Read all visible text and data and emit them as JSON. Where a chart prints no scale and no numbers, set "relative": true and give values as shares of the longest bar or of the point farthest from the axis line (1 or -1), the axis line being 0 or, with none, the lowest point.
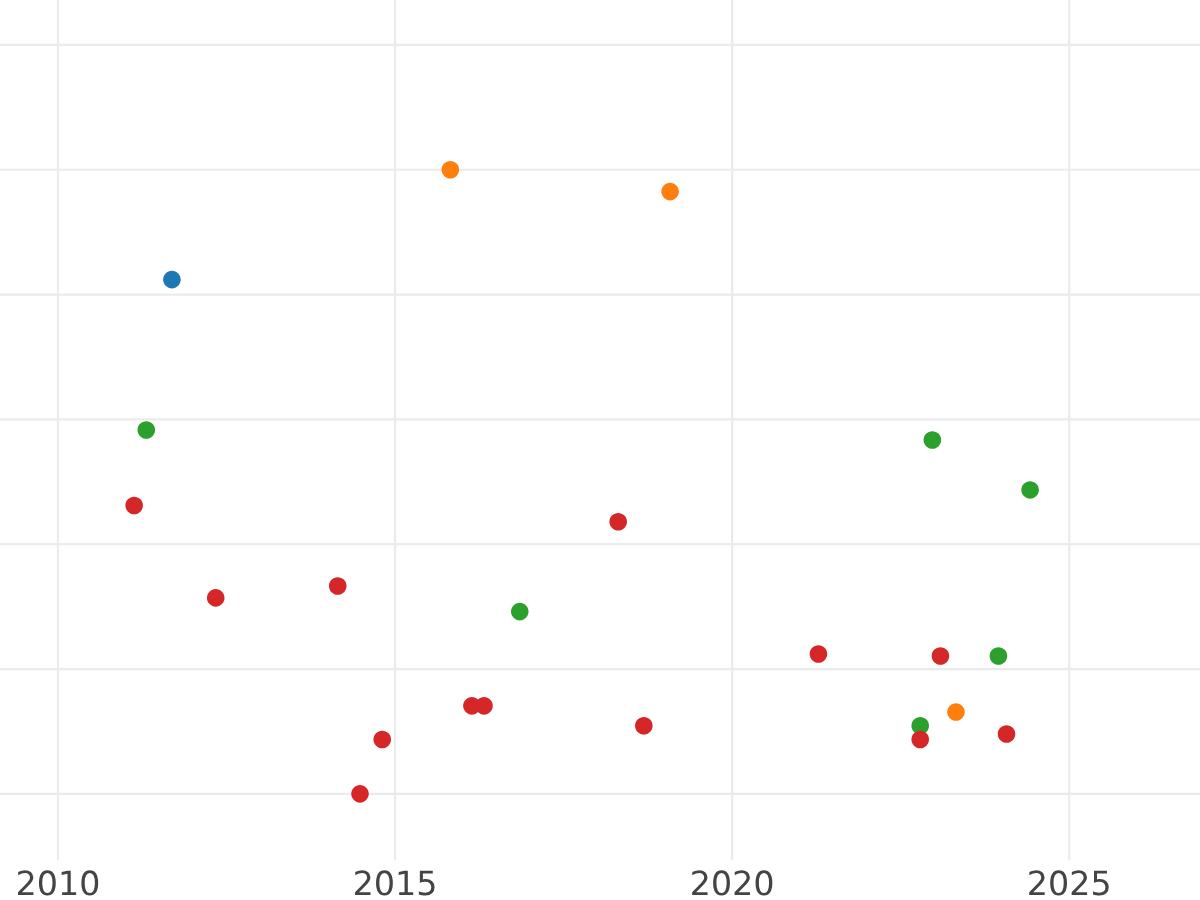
{
  "chart_data": {
    "type": "scatter",
    "relative": true,
    "xlim": [
      2009.14,
      2026.94
    ],
    "xticks": [
      2010,
      2015,
      2020,
      2025
    ],
    "grid": true,
    "marker": "circle",
    "series": [
      {
        "color": "#1f77b4",
        "x": [
          2011.69
        ],
        "values": [
          0.824
        ]
      },
      {
        "color": "#ff7f0e",
        "x": [
          2015.82,
          2019.08,
          2023.32
        ],
        "values": [
          1.0,
          0.965,
          0.131
        ]
      },
      {
        "color": "#2ca02c",
        "x": [
          2011.31,
          2022.97,
          2024.42,
          2016.85,
          2023.95,
          2022.79
        ],
        "values": [
          0.583,
          0.567,
          0.487,
          0.292,
          0.221,
          0.109
        ]
      },
      {
        "color": "#d62728",
        "x": [
          2011.13,
          2012.34,
          2014.15,
          2018.31,
          2016.14,
          2016.32,
          2014.81,
          2014.48,
          2018.69,
          2021.28,
          2023.09,
          2022.79,
          2024.07
        ],
        "values": [
          0.462,
          0.314,
          0.333,
          0.436,
          0.141,
          0.141,
          0.087,
          0.0,
          0.109,
          0.224,
          0.221,
          0.087,
          0.096
        ]
      }
    ]
  }
}
